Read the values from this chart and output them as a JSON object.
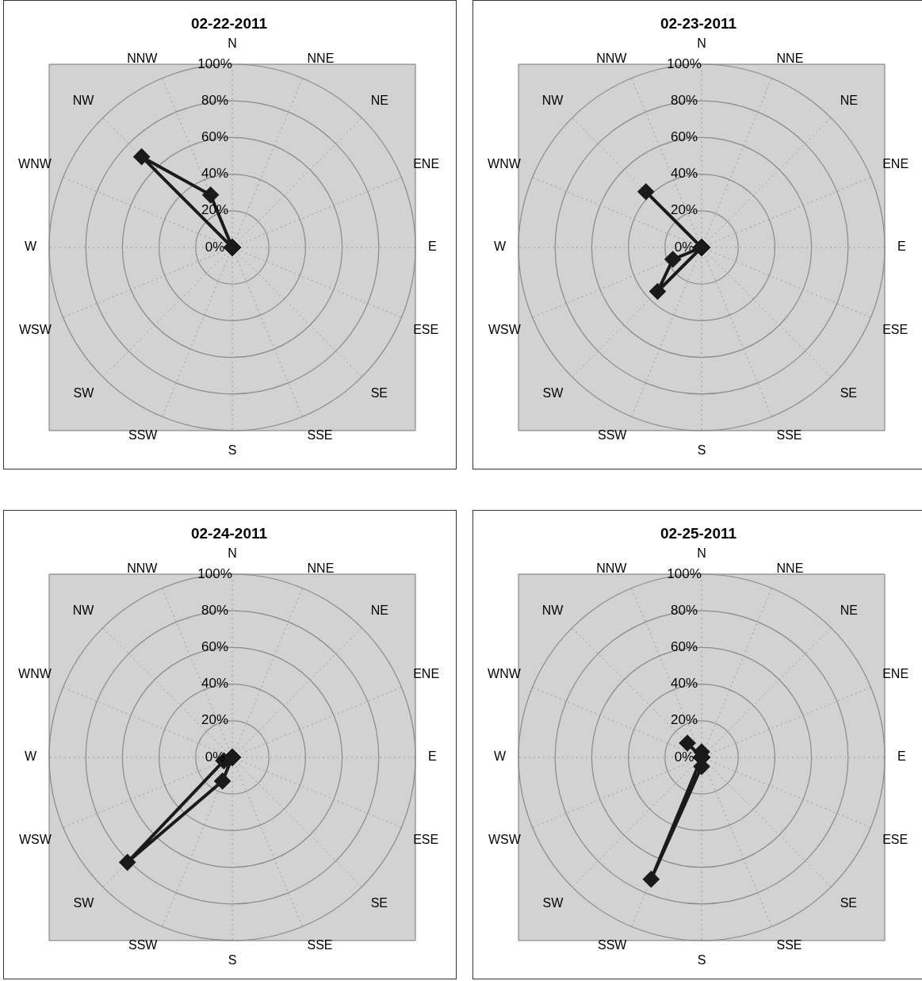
{
  "chart_data": [
    {
      "type": "radar",
      "title": "02-22-2011",
      "categories": [
        "N",
        "NNE",
        "NE",
        "ENE",
        "E",
        "ESE",
        "SE",
        "SSE",
        "S",
        "SSW",
        "SW",
        "WSW",
        "W",
        "WNW",
        "NW",
        "NNW"
      ],
      "values": [
        0,
        0,
        0,
        0,
        0,
        0,
        0,
        0,
        0,
        0,
        0,
        0,
        0,
        0,
        70,
        31
      ],
      "color": "#1a1a1a",
      "ylim": [
        0,
        100
      ],
      "yticks": [
        {
          "value": 0,
          "label": "0%"
        },
        {
          "value": 20,
          "label": "20%"
        },
        {
          "value": 40,
          "label": "40%"
        },
        {
          "value": 60,
          "label": "60%"
        },
        {
          "value": 80,
          "label": "80%"
        },
        {
          "value": 100,
          "label": "100%"
        }
      ],
      "grid": true,
      "marker": "diamond",
      "legend": false
    },
    {
      "type": "radar",
      "title": "02-23-2011",
      "categories": [
        "N",
        "NNE",
        "NE",
        "ENE",
        "E",
        "ESE",
        "SE",
        "SSE",
        "S",
        "SSW",
        "SW",
        "WSW",
        "W",
        "WNW",
        "NW",
        "NNW"
      ],
      "values": [
        0,
        0,
        0,
        0,
        0,
        0,
        0,
        0,
        0,
        0,
        34,
        17,
        0,
        0,
        43,
        0
      ],
      "color": "#1a1a1a",
      "ylim": [
        0,
        100
      ],
      "yticks": [
        {
          "value": 0,
          "label": "0%"
        },
        {
          "value": 20,
          "label": "20%"
        },
        {
          "value": 40,
          "label": "40%"
        },
        {
          "value": 60,
          "label": "60%"
        },
        {
          "value": 80,
          "label": "80%"
        },
        {
          "value": 100,
          "label": "100%"
        }
      ],
      "grid": true,
      "marker": "diamond",
      "legend": false
    },
    {
      "type": "radar",
      "title": "02-24-2011",
      "categories": [
        "N",
        "NNE",
        "NE",
        "ENE",
        "E",
        "ESE",
        "SE",
        "SSE",
        "S",
        "SSW",
        "SW",
        "WSW",
        "W",
        "WNW",
        "NW",
        "NNW"
      ],
      "values": [
        0,
        0,
        0,
        0,
        0,
        0,
        0,
        0,
        0,
        14,
        81,
        5,
        0,
        0,
        0,
        0
      ],
      "color": "#1a1a1a",
      "ylim": [
        0,
        100
      ],
      "yticks": [
        {
          "value": 0,
          "label": "0%"
        },
        {
          "value": 20,
          "label": "20%"
        },
        {
          "value": 40,
          "label": "40%"
        },
        {
          "value": 60,
          "label": "60%"
        },
        {
          "value": 80,
          "label": "80%"
        },
        {
          "value": 100,
          "label": "100%"
        }
      ],
      "grid": true,
      "marker": "diamond",
      "legend": false
    },
    {
      "type": "radar",
      "title": "02-25-2011",
      "categories": [
        "N",
        "NNE",
        "NE",
        "ENE",
        "E",
        "ESE",
        "SE",
        "SSE",
        "S",
        "SSW",
        "SW",
        "WSW",
        "W",
        "WNW",
        "NW",
        "NNW"
      ],
      "values": [
        3,
        0,
        0,
        0,
        0,
        0,
        0,
        0,
        5,
        72,
        0,
        0,
        0,
        0,
        11,
        0
      ],
      "color": "#1a1a1a",
      "ylim": [
        0,
        100
      ],
      "yticks": [
        {
          "value": 0,
          "label": "0%"
        },
        {
          "value": 20,
          "label": "20%"
        },
        {
          "value": 40,
          "label": "40%"
        },
        {
          "value": 60,
          "label": "60%"
        },
        {
          "value": 80,
          "label": "80%"
        },
        {
          "value": 100,
          "label": "100%"
        }
      ],
      "grid": true,
      "marker": "diamond",
      "legend": false
    }
  ]
}
